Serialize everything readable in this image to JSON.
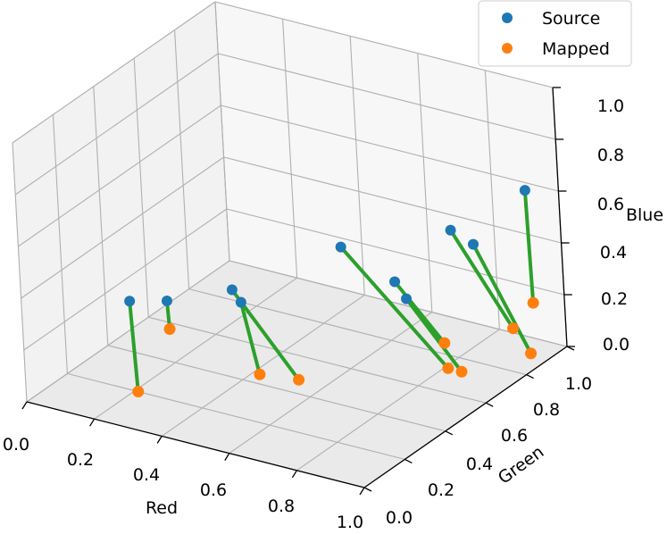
{
  "chart_data": {
    "type": "scatter3d",
    "xlabel": "Red",
    "ylabel": "Green",
    "zlabel": "Blue",
    "xlim": [
      0,
      1
    ],
    "ylim": [
      0,
      1
    ],
    "zlim": [
      0,
      1
    ],
    "x_ticks": [
      "0.0",
      "0.2",
      "0.4",
      "0.6",
      "0.8",
      "1.0"
    ],
    "y_ticks": [
      "0.0",
      "0.2",
      "0.4",
      "0.6",
      "0.8",
      "1.0"
    ],
    "z_ticks": [
      "0.0",
      "0.2",
      "0.4",
      "0.6",
      "0.8",
      "1.0"
    ],
    "grid": true,
    "legend_position": "top-right",
    "colors": {
      "source": "#1f77b4",
      "mapped": "#ff7f0e",
      "connector": "#2ca02c"
    },
    "series": [
      {
        "name": "Source",
        "points": [
          [
            0.06,
            0.42,
            0.18
          ],
          [
            0.09,
            0.55,
            0.12
          ],
          [
            0.18,
            0.72,
            0.1
          ],
          [
            0.23,
            0.68,
            0.09
          ],
          [
            0.4,
            0.9,
            0.24
          ],
          [
            0.55,
            0.91,
            0.15
          ],
          [
            0.62,
            0.85,
            0.14
          ],
          [
            0.72,
            0.92,
            0.4
          ],
          [
            0.83,
            0.85,
            0.42
          ],
          [
            0.95,
            0.92,
            0.63
          ]
        ]
      },
      {
        "name": "Mapped",
        "points": [
          [
            0.21,
            0.2,
            0.0
          ],
          [
            0.1,
            0.54,
            0.02
          ],
          [
            0.53,
            0.46,
            0.01
          ],
          [
            0.42,
            0.45,
            0.0
          ],
          [
            0.81,
            0.73,
            0.0
          ],
          [
            0.74,
            0.83,
            0.02
          ],
          [
            0.85,
            0.73,
            0.0
          ],
          [
            0.86,
            0.97,
            0.04
          ],
          [
            0.96,
            0.89,
            0.02
          ],
          [
            0.95,
            0.93,
            0.19
          ]
        ]
      }
    ]
  }
}
